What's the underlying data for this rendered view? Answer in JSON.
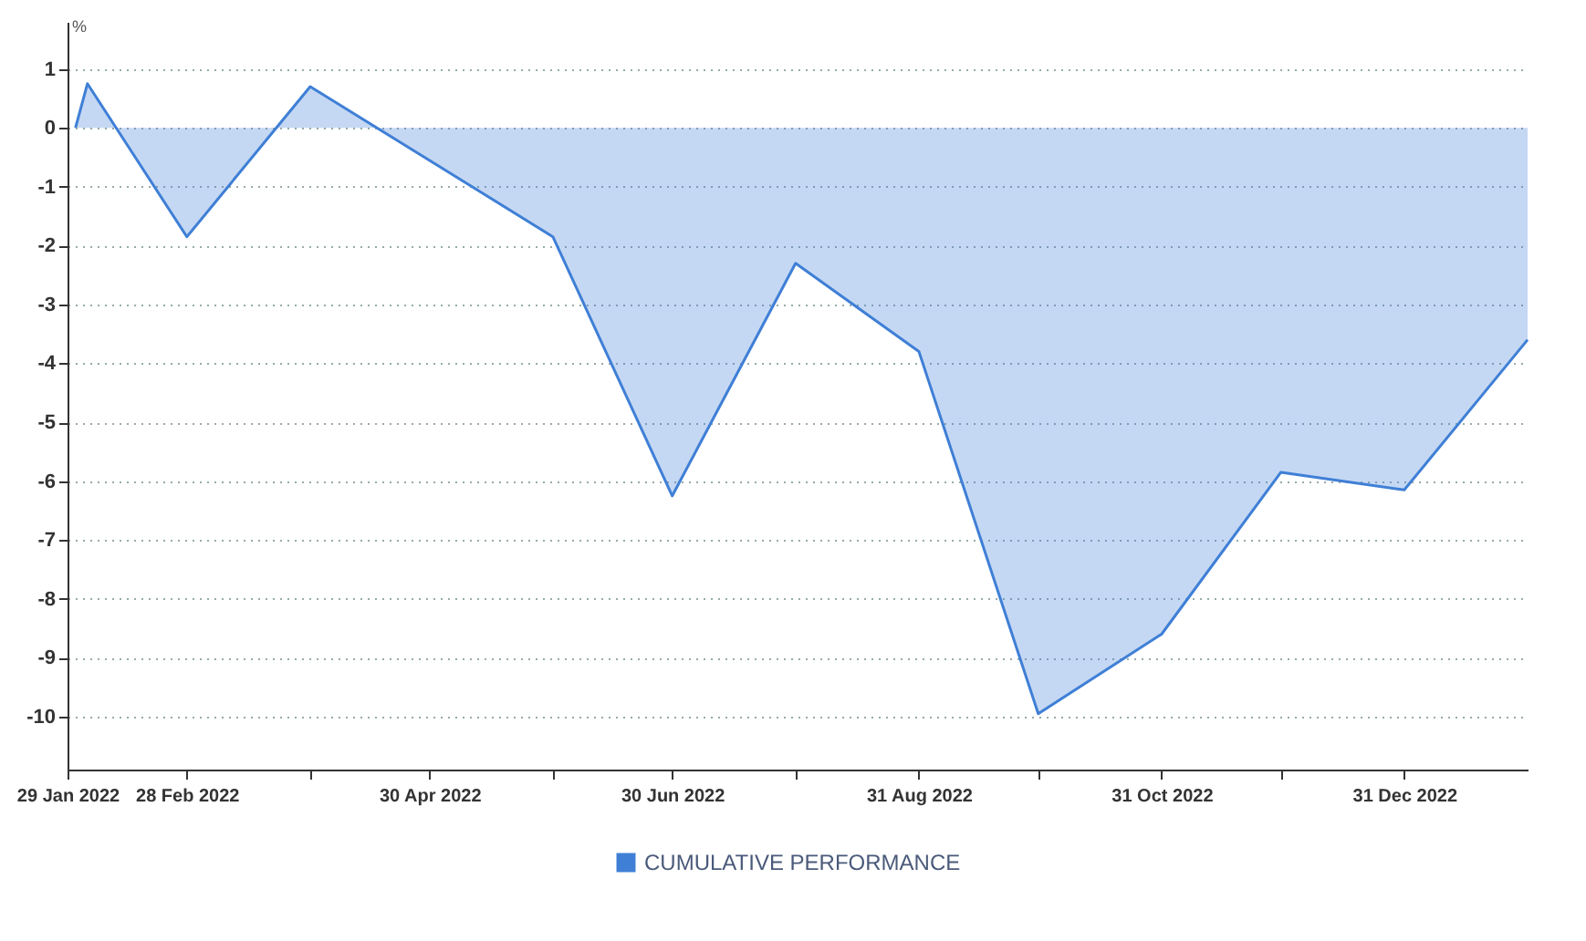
{
  "chart_data": {
    "type": "area",
    "ylabel": "%",
    "x": [
      "2022-01-31",
      "2022-02-03",
      "2022-02-28",
      "2022-03-31",
      "2022-05-31",
      "2022-06-30",
      "2022-07-31",
      "2022-08-31",
      "2022-09-30",
      "2022-10-31",
      "2022-11-30",
      "2022-12-31",
      "2023-01-31"
    ],
    "series": [
      {
        "name": "CUMULATIVE PERFORMANCE",
        "color": "#3f7fd6",
        "values": [
          0,
          0.75,
          -1.85,
          0.7,
          -1.85,
          -6.25,
          -2.3,
          -3.8,
          -9.95,
          -8.6,
          -5.85,
          -6.15,
          -3.6
        ]
      }
    ],
    "xlim": [
      "2022-01-29",
      "2023-01-31"
    ],
    "xticks": [
      {
        "value": "2022-01-29",
        "label": "29 Jan 2022"
      },
      {
        "value": "2022-02-28",
        "label": "28 Feb 2022"
      },
      {
        "value": "2022-03-31",
        "label": null
      },
      {
        "value": "2022-04-30",
        "label": "30 Apr 2022"
      },
      {
        "value": "2022-05-31",
        "label": null
      },
      {
        "value": "2022-06-30",
        "label": "30 Jun 2022"
      },
      {
        "value": "2022-07-31",
        "label": null
      },
      {
        "value": "2022-08-31",
        "label": "31 Aug 2022"
      },
      {
        "value": "2022-09-30",
        "label": null
      },
      {
        "value": "2022-10-31",
        "label": "31 Oct 2022"
      },
      {
        "value": "2022-11-30",
        "label": null
      },
      {
        "value": "2022-12-31",
        "label": "31 Dec 2022"
      }
    ],
    "ylim": [
      -10.9,
      1.8
    ],
    "yticks": [
      1,
      0,
      -1,
      -2,
      -3,
      -4,
      -5,
      -6,
      -7,
      -8,
      -9,
      -10
    ],
    "grid": "y",
    "legend": "bottom",
    "line_style": "solid"
  }
}
